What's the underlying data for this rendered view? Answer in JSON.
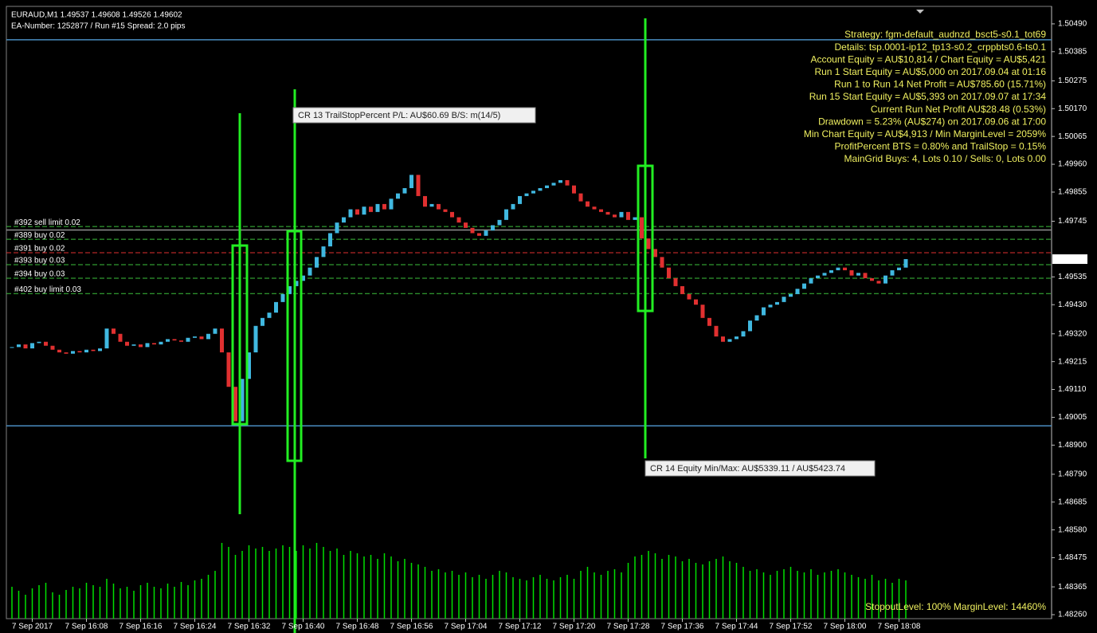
{
  "chart_data": {
    "type": "candlestick",
    "header": [
      "EURAUD,M1  1.49537 1.49608 1.49526 1.49602",
      "EA-Number: 1252877 / Run #15  Spread: 2.0 pips"
    ],
    "info": [
      "Strategy:  fgm-default_audnzd_bsct5-s0.1_tot69",
      "Details:  tsp.0001-ip12_tp13-s0.2_crppbts0.6-ts0.1",
      "Account Equity = AU$10,814 / Chart Equity = AU$5,421",
      "Run 1 Start Equity = AU$5,000 on 2017.09.04 at 01:16",
      "Run 1 to Run 14 Net Profit = AU$785.60 (15.71%)",
      "Run 15 Start Equity = AU$5,393 on 2017.09.07 at 17:34",
      "Current Run Net Profit AU$28.48 (0.53%)",
      "Drawdown = 5.23% (AU$274) on 2017.09.06 at 17:00",
      "Min Chart Equity = AU$4,913 / Min MarginLevel = 2059%",
      "ProfitPercent BTS = 0.80% and TrailStop = 0.15%",
      "MainGrid Buys: 4, Lots 0.10  /  Sells: 0, Lots 0.00"
    ],
    "margin_info": "StopoutLevel: 100%    MarginLevel: 14460%",
    "tooltips": [
      "CR 13  TrailStopPercent  P/L: AU$60.69  B/S: m(14/5)",
      "CR 14  Equity Min/Max: AU$5339.11 / AU$5423.74"
    ],
    "xlabels": [
      "7 Sep 2017",
      "7 Sep 16:08",
      "7 Sep 16:16",
      "7 Sep 16:24",
      "7 Sep 16:32",
      "7 Sep 16:40",
      "7 Sep 16:48",
      "7 Sep 16:56",
      "7 Sep 17:04",
      "7 Sep 17:12",
      "7 Sep 17:20",
      "7 Sep 17:28",
      "7 Sep 17:36",
      "7 Sep 17:44",
      "7 Sep 17:52",
      "7 Sep 18:00",
      "7 Sep 18:08"
    ],
    "ylim": [
      1.48245,
      1.50556
    ],
    "yticks": [
      {
        "value": 1.5049,
        "label": "1.50490"
      },
      {
        "value": 1.50385,
        "label": "1.50385"
      },
      {
        "value": 1.50275,
        "label": "1.50275"
      },
      {
        "value": 1.5017,
        "label": "1.50170"
      },
      {
        "value": 1.50065,
        "label": "1.50065"
      },
      {
        "value": 1.4996,
        "label": "1.49960"
      },
      {
        "value": 1.49855,
        "label": "1.49855"
      },
      {
        "value": 1.49745,
        "label": "1.49745"
      },
      {
        "value": 1.49535,
        "label": "1.49535"
      },
      {
        "value": 1.4943,
        "label": "1.49430"
      },
      {
        "value": 1.4932,
        "label": "1.49320"
      },
      {
        "value": 1.49215,
        "label": "1.49215"
      },
      {
        "value": 1.4911,
        "label": "1.49110"
      },
      {
        "value": 1.49005,
        "label": "1.49005"
      },
      {
        "value": 1.489,
        "label": "1.48900"
      },
      {
        "value": 1.4879,
        "label": "1.48790"
      },
      {
        "value": 1.48685,
        "label": "1.48685"
      },
      {
        "value": 1.4858,
        "label": "1.48580"
      },
      {
        "value": 1.48475,
        "label": "1.48475"
      },
      {
        "value": 1.48365,
        "label": "1.48365"
      },
      {
        "value": 1.4826,
        "label": "1.48260"
      }
    ],
    "bid": 1.49602,
    "levels": [
      {
        "label": "#392 sell limit 0.02",
        "price": 1.49725,
        "color": "#3cc03c"
      },
      {
        "label": "#389 buy 0.02",
        "price": 1.49677,
        "color": "#3cc03c"
      },
      {
        "label": "#391 buy 0.02",
        "price": 1.49626,
        "color": "#e03030"
      },
      {
        "label": "#393 buy 0.03",
        "price": 1.49581,
        "color": "#3cc03c"
      },
      {
        "label": "#394 buy 0.03",
        "price": 1.4953,
        "color": "#3cc03c"
      },
      {
        "label": "#402 buy limit 0.03",
        "price": 1.49472,
        "color": "#3cc03c"
      }
    ],
    "hlines": [
      {
        "price": 1.5043,
        "color": "#4a8cc0"
      },
      {
        "price": 1.48973,
        "color": "#4a8cc0"
      },
      {
        "price": 1.49712,
        "color": "#909090"
      }
    ],
    "up_color": "#40b8e0",
    "down_color": "#e03030",
    "volume_color": "#00e000",
    "close": [
      1.4927,
      1.4928,
      1.49265,
      1.49285,
      1.4929,
      1.49275,
      1.4926,
      1.4925,
      1.49245,
      1.49255,
      1.4925,
      1.4926,
      1.49255,
      1.49265,
      1.4934,
      1.4932,
      1.4929,
      1.49275,
      1.4928,
      1.4927,
      1.49285,
      1.4928,
      1.4929,
      1.493,
      1.49295,
      1.4929,
      1.49305,
      1.4931,
      1.493,
      1.4932,
      1.4934,
      1.4925,
      1.4912,
      1.4899,
      1.4915,
      1.4925,
      1.4935,
      1.4938,
      1.494,
      1.4944,
      1.4947,
      1.495,
      1.4952,
      1.4954,
      1.4957,
      1.4961,
      1.4965,
      1.497,
      1.4974,
      1.4976,
      1.4979,
      1.4977,
      1.498,
      1.4978,
      1.4981,
      1.4979,
      1.4983,
      1.4985,
      1.4987,
      1.4992,
      1.4984,
      1.498,
      1.4981,
      1.4979,
      1.4978,
      1.4976,
      1.4974,
      1.4972,
      1.497,
      1.4969,
      1.4971,
      1.4973,
      1.4975,
      1.4979,
      1.4981,
      1.4984,
      1.4985,
      1.4986,
      1.4987,
      1.4988,
      1.4989,
      1.499,
      1.4988,
      1.4985,
      1.4982,
      1.498,
      1.4979,
      1.4978,
      1.4977,
      1.4976,
      1.4978,
      1.4975,
      1.4976,
      1.4968,
      1.4964,
      1.4961,
      1.4957,
      1.4953,
      1.495,
      1.4947,
      1.4945,
      1.4943,
      1.4938,
      1.4935,
      1.4931,
      1.4929,
      1.493,
      1.4931,
      1.4933,
      1.4937,
      1.4939,
      1.4942,
      1.4943,
      1.4944,
      1.4946,
      1.4947,
      1.4949,
      1.4951,
      1.4953,
      1.4954,
      1.4955,
      1.4956,
      1.4957,
      1.4956,
      1.4954,
      1.4955,
      1.4953,
      1.4952,
      1.4951,
      1.4954,
      1.4956,
      1.4957,
      1.49602
    ],
    "volume": [
      40,
      35,
      30,
      38,
      42,
      45,
      33,
      30,
      36,
      40,
      38,
      45,
      42,
      40,
      50,
      44,
      38,
      40,
      35,
      42,
      45,
      40,
      38,
      44,
      40,
      46,
      42,
      48,
      50,
      55,
      60,
      95,
      90,
      80,
      85,
      92,
      88,
      90,
      85,
      88,
      92,
      90,
      85,
      92,
      88,
      95,
      90,
      85,
      88,
      80,
      85,
      82,
      78,
      80,
      75,
      82,
      78,
      72,
      75,
      70,
      68,
      65,
      60,
      62,
      58,
      60,
      55,
      58,
      52,
      55,
      50,
      55,
      60,
      58,
      52,
      50,
      48,
      52,
      55,
      50,
      48,
      52,
      55,
      50,
      60,
      65,
      58,
      55,
      60,
      62,
      58,
      70,
      78,
      80,
      85,
      82,
      75,
      80,
      78,
      72,
      75,
      70,
      68,
      72,
      75,
      78,
      72,
      70,
      65,
      60,
      62,
      58,
      55,
      60,
      62,
      65,
      60,
      58,
      62,
      55,
      58,
      60,
      62,
      58,
      55,
      52,
      50,
      55,
      48,
      50,
      45,
      50,
      48
    ]
  }
}
